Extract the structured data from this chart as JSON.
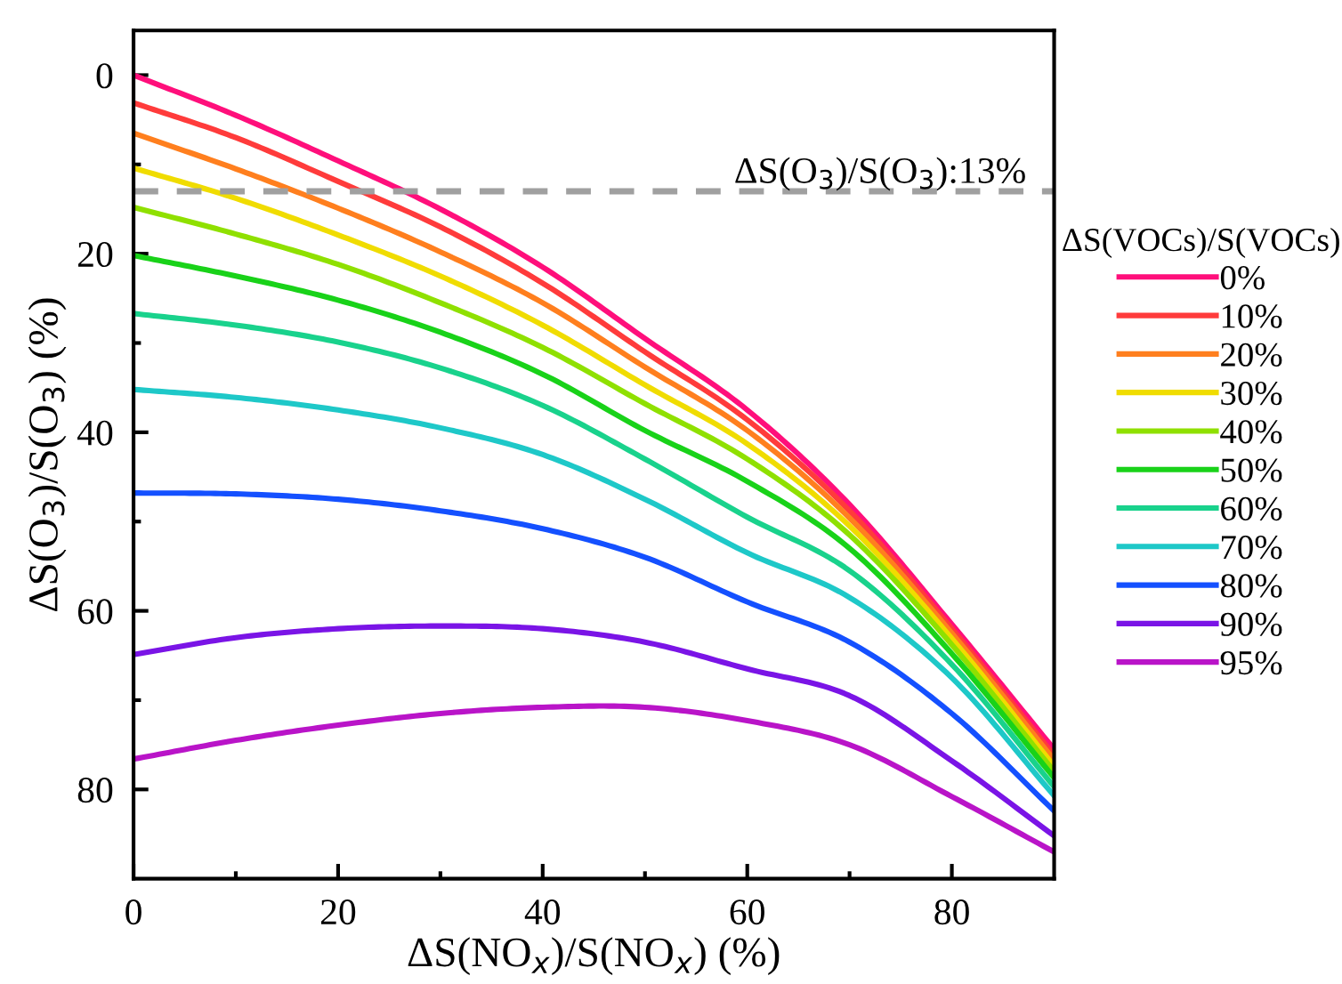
{
  "chart_data": {
    "type": "line",
    "xlabel": "ΔS(NO$_{x}$)/S(NO$_{x}$) (%)",
    "ylabel": "ΔS(O$_{3}$)/S(O$_{3}$) (%)",
    "legend_title": "ΔS(VOCs)/S(VOCs)",
    "legend": "right",
    "grid": false,
    "marker": "none",
    "line_style": "solid",
    "x": [
      0,
      10,
      20,
      30,
      40,
      50,
      60,
      70,
      80,
      90
    ],
    "xlim": [
      0,
      90
    ],
    "xticks": [
      0,
      20,
      40,
      60,
      80
    ],
    "ylim": [
      90,
      -5
    ],
    "yticks": [
      0,
      20,
      40,
      60,
      80
    ],
    "ref_lines": [
      {
        "axis": "y",
        "value": 13,
        "label": "ΔS(O$_{3}$)/S(O$_{3}$):13%",
        "color": "#a0a0a0",
        "line_style": "dashed"
      }
    ],
    "series": [
      {
        "name": "0%",
        "color": "#ff0f7b",
        "values": [
          0,
          4.5,
          9.6,
          15,
          21.5,
          29.5,
          37.5,
          48.1,
          61.5,
          75.5
        ]
      },
      {
        "name": "10%",
        "color": "#ff3b3b",
        "values": [
          3.1,
          7,
          11.9,
          17,
          23.3,
          31,
          38.6,
          48.8,
          62,
          76.2
        ]
      },
      {
        "name": "20%",
        "color": "#ff7f1e",
        "values": [
          6.5,
          10.5,
          14.9,
          19.8,
          25.5,
          32.7,
          39.8,
          49.6,
          62.5,
          76.7
        ]
      },
      {
        "name": "30%",
        "color": "#f0dc00",
        "values": [
          10.4,
          13.8,
          17.9,
          22.5,
          28,
          34.7,
          41.3,
          50.5,
          63.1,
          77.4
        ]
      },
      {
        "name": "40%",
        "color": "#8fe000",
        "values": [
          14.8,
          17.8,
          21.2,
          25.5,
          30.5,
          36.8,
          43,
          51.5,
          63.8,
          78
        ]
      },
      {
        "name": "50%",
        "color": "#19d219",
        "values": [
          20.2,
          22.5,
          25.2,
          28.8,
          33.5,
          39.8,
          45.5,
          53,
          64.8,
          78.7
        ]
      },
      {
        "name": "60%",
        "color": "#19d28c",
        "values": [
          26.7,
          28,
          29.9,
          32.8,
          37,
          43,
          49.5,
          55.5,
          66,
          79.7
        ]
      },
      {
        "name": "70%",
        "color": "#1ec8c8",
        "values": [
          35.2,
          36.1,
          37.5,
          39.5,
          42.5,
          47.5,
          53.5,
          58.5,
          67.5,
          80.7
        ]
      },
      {
        "name": "80%",
        "color": "#1450ff",
        "values": [
          46.8,
          46.9,
          47.5,
          48.8,
          50.8,
          54,
          59,
          63.5,
          71.5,
          82.4
        ]
      },
      {
        "name": "90%",
        "color": "#7a14e6",
        "values": [
          64.9,
          63,
          62,
          61.7,
          62,
          63.5,
          66.5,
          69.5,
          76.8,
          85.2
        ]
      },
      {
        "name": "95%",
        "color": "#b914c8",
        "values": [
          76.6,
          74.5,
          72.8,
          71.5,
          70.8,
          70.8,
          72.3,
          75,
          80.8,
          87
        ]
      }
    ]
  }
}
